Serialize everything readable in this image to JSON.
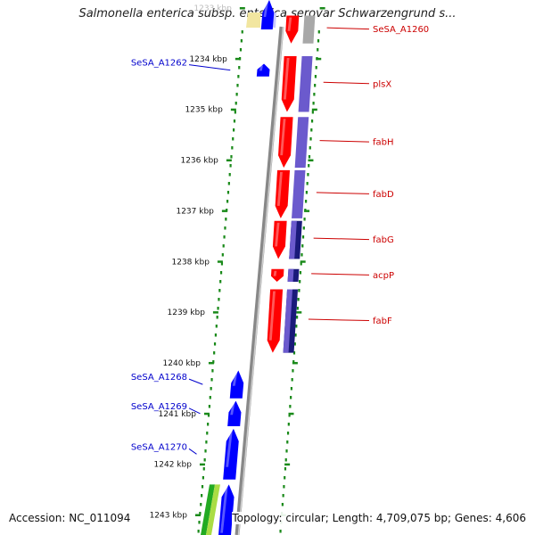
{
  "title": "Salmonella enterica subsp. enterica serovar Schwarzengrund s...",
  "footer": {
    "accession": "Accession: NC_011094",
    "summary": "Topology: circular; Length: 4,709,075 bp; Genes: 4,606"
  },
  "ruler": {
    "labels": [
      "1233 kbp",
      "1234 kbp",
      "1235 kbp",
      "1236 kbp",
      "1237 kbp",
      "1238 kbp",
      "1239 kbp",
      "1240 kbp",
      "1241 kbp",
      "1242 kbp",
      "1243 kbp"
    ],
    "kbp_start": 1233,
    "kbp_end": 1243
  },
  "colors": {
    "forward_gene": "#0000ff",
    "reverse_gene": "#ff0000",
    "reverse_label": "#cc0000",
    "forward_label": "#0000cc",
    "cog_purple": "#6b5acd",
    "cog_navy": "#1a1a7a",
    "cog_gray": "#a8a8a8",
    "backbone": "#888888",
    "dots": "#1a8a1a",
    "green_block": "#22aa22",
    "lime_block": "#aadd44"
  },
  "genes": {
    "forward": [
      {
        "name": "SeSA_A1262",
        "start_kbp": 1234.1,
        "end_kbp": 1234.35
      },
      {
        "name": "SeSA_A1268",
        "start_kbp": 1240.15,
        "end_kbp": 1240.7
      },
      {
        "name": "SeSA_A1269",
        "start_kbp": 1240.75,
        "end_kbp": 1241.25
      },
      {
        "name": "SeSA_A1270",
        "start_kbp": 1241.3,
        "end_kbp": 1242.3
      },
      {
        "name": "",
        "start_kbp": 1242.4,
        "end_kbp": 1243.6
      }
    ],
    "reverse": [
      {
        "name": "SeSA_A1260",
        "start_kbp": 1233.15,
        "end_kbp": 1233.7
      },
      {
        "name": "plsX",
        "start_kbp": 1233.95,
        "end_kbp": 1235.05
      },
      {
        "name": "fabH",
        "start_kbp": 1235.15,
        "end_kbp": 1236.15
      },
      {
        "name": "fabD",
        "start_kbp": 1236.2,
        "end_kbp": 1237.15
      },
      {
        "name": "fabG",
        "start_kbp": 1237.2,
        "end_kbp": 1237.95
      },
      {
        "name": "acpP",
        "start_kbp": 1238.15,
        "end_kbp": 1238.4
      },
      {
        "name": "fabF",
        "start_kbp": 1238.55,
        "end_kbp": 1239.8
      }
    ]
  }
}
